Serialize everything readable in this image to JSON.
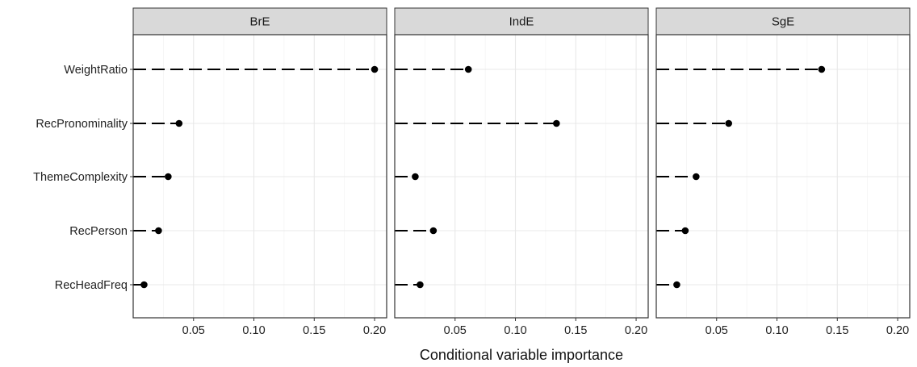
{
  "chart_data": {
    "type": "dot",
    "xlabel": "Conditional variable importance",
    "xlim": [
      0,
      0.21
    ],
    "x_ticks": [
      0.05,
      0.1,
      0.15,
      0.2
    ],
    "x_tick_labels": [
      "0.05",
      "0.10",
      "0.15",
      "0.20"
    ],
    "categories": [
      "WeightRatio",
      "RecPronominality",
      "ThemeComplexity",
      "RecPerson",
      "RecHeadFreq"
    ],
    "panels": [
      {
        "name": "BrE",
        "values": [
          0.2,
          0.038,
          0.029,
          0.021,
          0.009
        ]
      },
      {
        "name": "IndE",
        "values": [
          0.061,
          0.134,
          0.017,
          0.032,
          0.021
        ]
      },
      {
        "name": "SgE",
        "values": [
          0.137,
          0.06,
          0.033,
          0.024,
          0.017
        ]
      }
    ],
    "grid": true,
    "stem_style": "dashed",
    "colors": {
      "marker": "#000000",
      "strip": "#d9d9d9",
      "grid": "#e8e8e8"
    }
  }
}
